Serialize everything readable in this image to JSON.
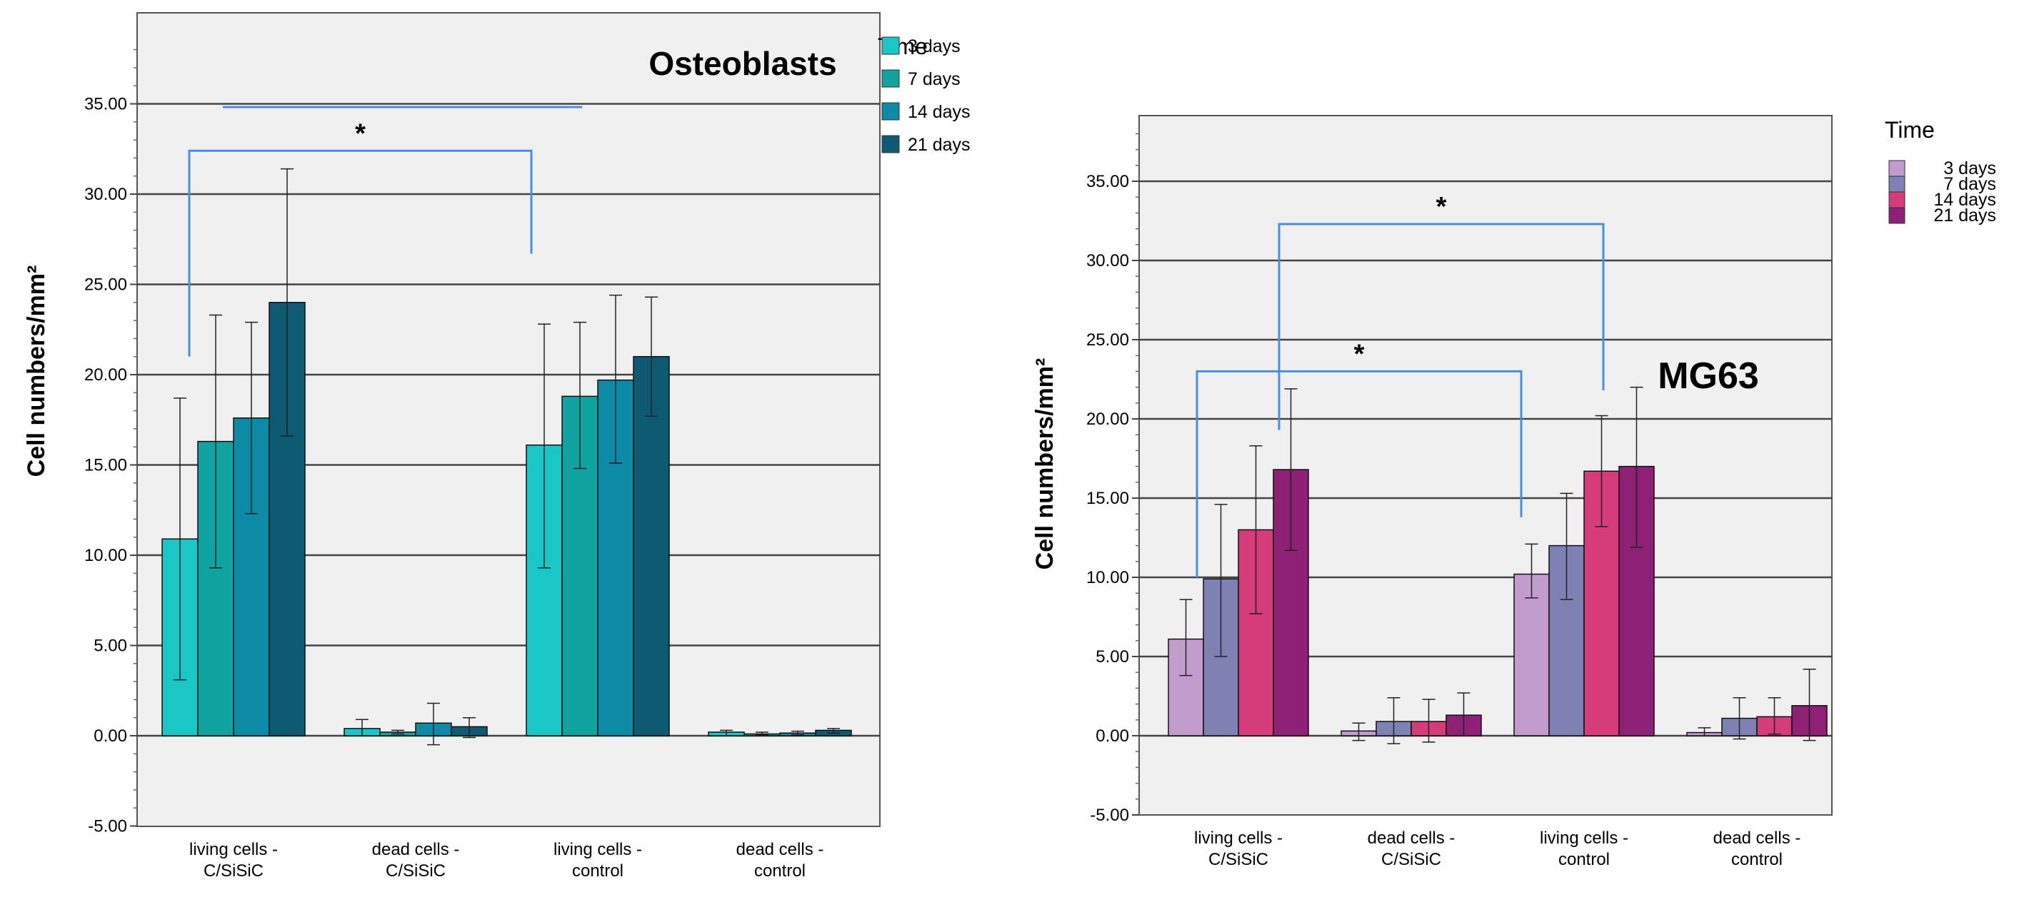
{
  "chart_data": [
    {
      "type": "bar",
      "title": "Osteoblasts",
      "ylabel": "Cell numbers/mm²",
      "xlabel": "",
      "ylim": [
        -5,
        40
      ],
      "yticks": [
        "-5.00",
        "0.00",
        "5.00",
        "10.00",
        "15.00",
        "20.00",
        "25.00",
        "30.00",
        "35.00"
      ],
      "categories": [
        [
          "living cells -",
          "C/SiSiC"
        ],
        [
          "dead cells -",
          "C/SiSiC"
        ],
        [
          "living cells -",
          "control"
        ],
        [
          "dead cells -",
          "control"
        ]
      ],
      "legend_title": "Time",
      "series": [
        {
          "name": "3 days",
          "color": "#1ac6c6",
          "values": [
            10.9,
            0.4,
            16.1,
            0.2
          ],
          "err_low": [
            3.1,
            0.0,
            9.3,
            0.0
          ],
          "err_high": [
            18.7,
            0.9,
            22.8,
            0.3
          ]
        },
        {
          "name": "7 days",
          "color": "#11a3a0",
          "values": [
            16.3,
            0.2,
            18.8,
            0.1
          ],
          "err_low": [
            9.3,
            0.1,
            14.8,
            0.05
          ],
          "err_high": [
            23.3,
            0.3,
            22.9,
            0.2
          ]
        },
        {
          "name": "14 days",
          "color": "#0c8aa6",
          "values": [
            17.6,
            0.7,
            19.7,
            0.15
          ],
          "err_low": [
            12.3,
            -0.5,
            15.1,
            0.05
          ],
          "err_high": [
            22.9,
            1.8,
            24.4,
            0.25
          ]
        },
        {
          "name": "21 days",
          "color": "#0d5a72",
          "values": [
            24.0,
            0.5,
            21.0,
            0.3
          ],
          "err_low": [
            16.6,
            -0.1,
            17.7,
            0.15
          ],
          "err_high": [
            31.4,
            1.0,
            24.3,
            0.4
          ]
        }
      ],
      "annotations": [
        {
          "label": "*",
          "from": {
            "category": 0,
            "y": 21.0
          },
          "to": {
            "category": 2,
            "y": 26.7
          },
          "bar_y": 32.4
        }
      ]
    },
    {
      "type": "bar",
      "title": "MG63",
      "ylabel": "Cell numbers/mm²",
      "xlabel": "",
      "ylim": [
        -5,
        40
      ],
      "yticks": [
        "-5.00",
        "0.00",
        "5.00",
        "10.00",
        "15.00",
        "20.00",
        "25.00",
        "30.00",
        "35.00"
      ],
      "categories": [
        [
          "living cells -",
          "C/SiSiC"
        ],
        [
          "dead cells -",
          "C/SiSiC"
        ],
        [
          "living cells -",
          "control"
        ],
        [
          "dead cells -",
          "control"
        ]
      ],
      "legend_title": "Time",
      "series": [
        {
          "name": "3 days",
          "color": "#c39cce",
          "values": [
            6.1,
            0.3,
            10.2,
            0.2
          ],
          "err_low": [
            3.8,
            -0.3,
            8.7,
            0.0
          ],
          "err_high": [
            8.6,
            0.8,
            12.1,
            0.5
          ]
        },
        {
          "name": "7 days",
          "color": "#7f81b3",
          "values": [
            9.9,
            0.9,
            12.0,
            1.1
          ],
          "err_low": [
            5.0,
            -0.5,
            8.6,
            -0.2
          ],
          "err_high": [
            14.6,
            2.4,
            15.3,
            2.4
          ]
        },
        {
          "name": "14 days",
          "color": "#d63b7a",
          "values": [
            13.0,
            0.9,
            16.7,
            1.2
          ],
          "err_low": [
            7.7,
            -0.4,
            13.2,
            0.1
          ],
          "err_high": [
            18.3,
            2.3,
            20.2,
            2.4
          ]
        },
        {
          "name": "21 days",
          "color": "#8e2075",
          "values": [
            16.8,
            1.3,
            17.0,
            1.9
          ],
          "err_low": [
            11.7,
            0.0,
            11.9,
            -0.3
          ],
          "err_high": [
            21.9,
            2.7,
            22.0,
            4.2
          ]
        }
      ],
      "annotations": [
        {
          "label": "*",
          "from": {
            "category": 0,
            "y": 10.0
          },
          "to": {
            "category": 2,
            "y": 13.8
          },
          "bar_y": 23.0
        },
        {
          "label": "*",
          "from": {
            "category": 0,
            "y": 19.3
          },
          "to": {
            "category": 2,
            "y": 21.8
          },
          "bar_y": 32.3
        }
      ]
    }
  ]
}
